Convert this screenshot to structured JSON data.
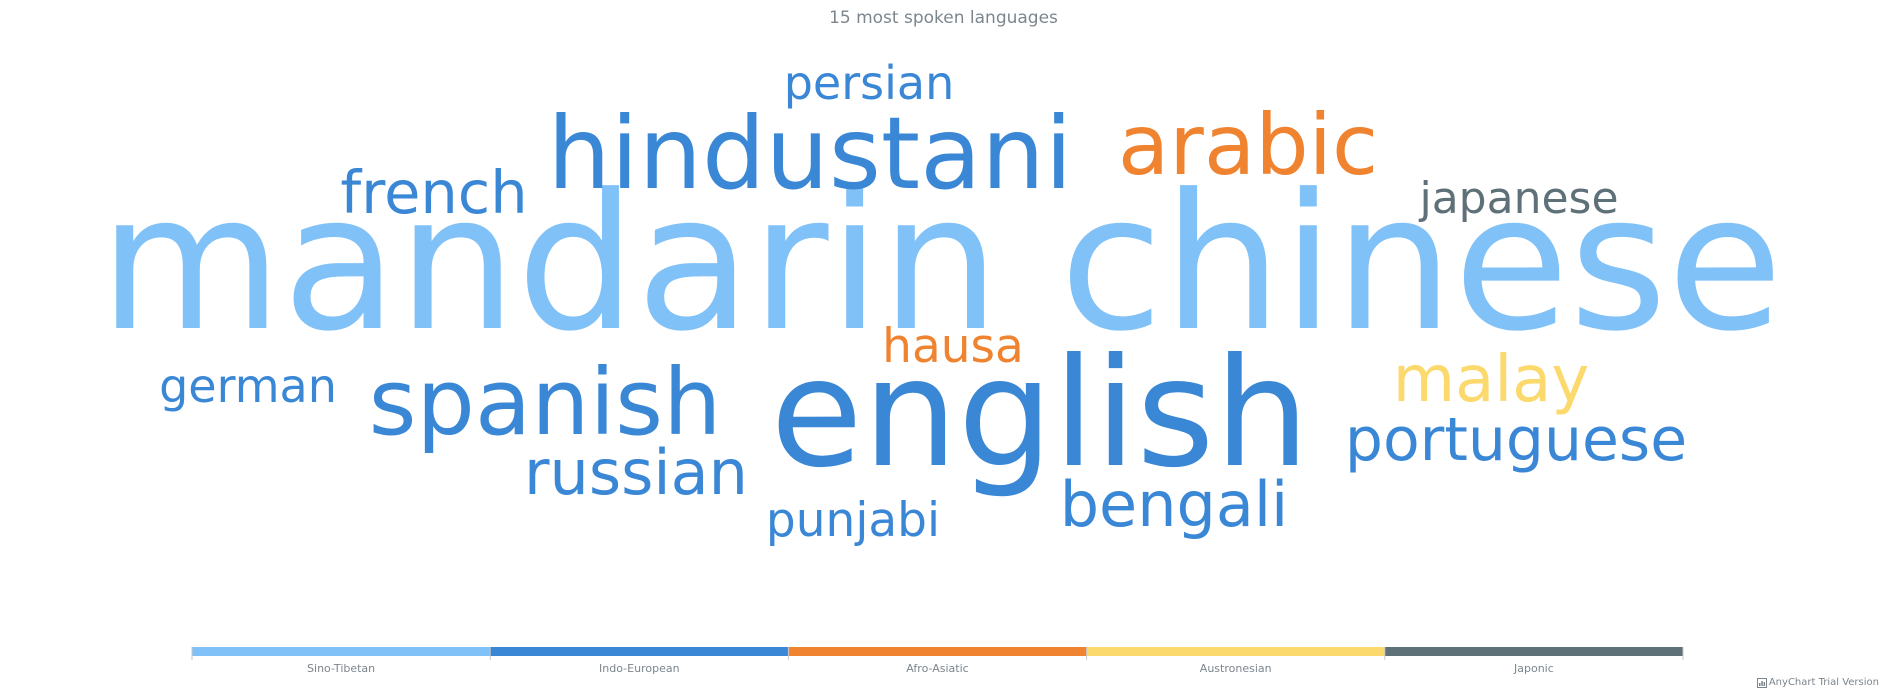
{
  "chart_data": {
    "type": "tag-cloud",
    "title": "15 most spoken languages",
    "words": [
      {
        "text": "mandarin chinese",
        "category": "Sino-Tibetan"
      },
      {
        "text": "english",
        "category": "Indo-European"
      },
      {
        "text": "hindustani",
        "category": "Indo-European"
      },
      {
        "text": "spanish",
        "category": "Indo-European"
      },
      {
        "text": "arabic",
        "category": "Afro-Asiatic"
      },
      {
        "text": "malay",
        "category": "Austronesian"
      },
      {
        "text": "russian",
        "category": "Indo-European"
      },
      {
        "text": "bengali",
        "category": "Indo-European"
      },
      {
        "text": "portuguese",
        "category": "Indo-European"
      },
      {
        "text": "french",
        "category": "Indo-European"
      },
      {
        "text": "hausa",
        "category": "Afro-Asiatic"
      },
      {
        "text": "punjabi",
        "category": "Indo-European"
      },
      {
        "text": "japanese",
        "category": "Japonic"
      },
      {
        "text": "german",
        "category": "Indo-European"
      },
      {
        "text": "persian",
        "category": "Indo-European"
      }
    ],
    "categories": [
      {
        "name": "Sino-Tibetan",
        "color": "#80c1f7"
      },
      {
        "name": "Indo-European",
        "color": "#3a87d6"
      },
      {
        "name": "Afro-Asiatic",
        "color": "#ef8330"
      },
      {
        "name": "Austronesian",
        "color": "#fcd96c"
      },
      {
        "name": "Japonic",
        "color": "#5f7178"
      }
    ],
    "legend_placement": "bottom"
  },
  "credits": {
    "text": "AnyChart Trial Version",
    "icon": "chart-icon"
  }
}
